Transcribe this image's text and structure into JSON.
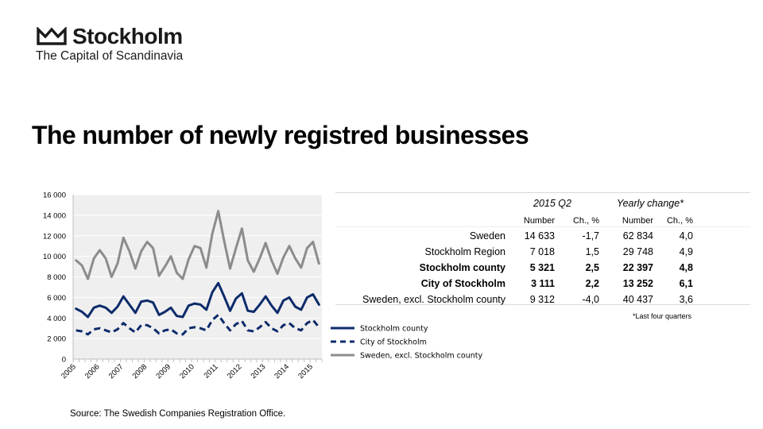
{
  "brand": {
    "name": "Stockholm",
    "tagline": "The Capital of Scandinavia"
  },
  "title": "The number of newly registred businesses",
  "source": "Source: The Swedish Companies Registration Office.",
  "chart_data": {
    "type": "line",
    "title": "",
    "xlabel": "",
    "ylabel": "",
    "ylim": [
      0,
      16000
    ],
    "yticks": [
      "0",
      "2 000",
      "4 000",
      "6 000",
      "8 000",
      "10 000",
      "12 000",
      "14 000",
      "16 000"
    ],
    "xticks": [
      "2005",
      "2006",
      "2007",
      "2008",
      "2009",
      "2010",
      "2011",
      "2012",
      "2013",
      "2014",
      "2015"
    ],
    "x_quarters": [
      "2005Q1",
      "2005Q2",
      "2005Q3",
      "2005Q4",
      "2006Q1",
      "2006Q2",
      "2006Q3",
      "2006Q4",
      "2007Q1",
      "2007Q2",
      "2007Q3",
      "2007Q4",
      "2008Q1",
      "2008Q2",
      "2008Q3",
      "2008Q4",
      "2009Q1",
      "2009Q2",
      "2009Q3",
      "2009Q4",
      "2010Q1",
      "2010Q2",
      "2010Q3",
      "2010Q4",
      "2011Q1",
      "2011Q2",
      "2011Q3",
      "2011Q4",
      "2012Q1",
      "2012Q2",
      "2012Q3",
      "2012Q4",
      "2013Q1",
      "2013Q2",
      "2013Q3",
      "2013Q4",
      "2014Q1",
      "2014Q2",
      "2014Q3",
      "2014Q4",
      "2015Q1",
      "2015Q2"
    ],
    "grid": true,
    "legend_position": "bottom-right",
    "series": [
      {
        "name": "Stockholm county",
        "color": "#0d2b6b",
        "dash": "solid",
        "values": [
          4900,
          4600,
          4100,
          5000,
          5200,
          5000,
          4500,
          5100,
          6100,
          5300,
          4500,
          5600,
          5700,
          5500,
          4300,
          4600,
          5000,
          4200,
          4100,
          5200,
          5400,
          5300,
          4800,
          6500,
          7400,
          6100,
          4700,
          5900,
          6400,
          4700,
          4600,
          5300,
          6100,
          5200,
          4500,
          5700,
          6000,
          5100,
          4800,
          6000,
          6300,
          5300
        ]
      },
      {
        "name": "City of Stockholm",
        "color": "#0d2b6b",
        "dash": "dashed",
        "values": [
          2800,
          2700,
          2400,
          2900,
          3000,
          2800,
          2600,
          2900,
          3500,
          3000,
          2600,
          3300,
          3300,
          3000,
          2500,
          2800,
          2900,
          2500,
          2400,
          3000,
          3100,
          3000,
          2800,
          3800,
          4300,
          3500,
          2800,
          3400,
          3700,
          2800,
          2700,
          3100,
          3600,
          3000,
          2700,
          3300,
          3500,
          3000,
          2800,
          3500,
          3800,
          3100
        ]
      },
      {
        "name": "Sweden, excl. Stockholm county",
        "color": "#8c8c8c",
        "dash": "solid",
        "values": [
          9600,
          9100,
          7800,
          9800,
          10600,
          9800,
          8000,
          9300,
          11800,
          10500,
          8800,
          10500,
          11400,
          10800,
          8100,
          9000,
          10000,
          8400,
          7800,
          9700,
          11000,
          10800,
          8900,
          12200,
          14400,
          11500,
          8800,
          10800,
          12700,
          9600,
          8500,
          9800,
          11300,
          9600,
          8300,
          9900,
          11000,
          9800,
          8900,
          10800,
          11400,
          9300
        ]
      }
    ]
  },
  "table": {
    "group_headers": [
      "2015 Q2",
      "Yearly change*"
    ],
    "sub_headers": [
      "Number",
      "Ch., %",
      "Number",
      "Ch., %"
    ],
    "rows": [
      {
        "name": "Sweden",
        "cells": [
          "14 633",
          "-1,7",
          "62 834",
          "4,0"
        ],
        "bold": false
      },
      {
        "name": "Stockholm Region",
        "cells": [
          "7 018",
          "1,5",
          "29 748",
          "4,9"
        ],
        "bold": false
      },
      {
        "name": "Stockholm county",
        "cells": [
          "5 321",
          "2,5",
          "22 397",
          "4,8"
        ],
        "bold": true
      },
      {
        "name": "City of Stockholm",
        "cells": [
          "3 111",
          "2,2",
          "13 252",
          "6,1"
        ],
        "bold": true
      },
      {
        "name": "Sweden, excl. Stockholm county",
        "cells": [
          "9 312",
          "-4,0",
          "40 437",
          "3,6"
        ],
        "bold": false
      }
    ],
    "footnote": "*Last four quarters"
  }
}
